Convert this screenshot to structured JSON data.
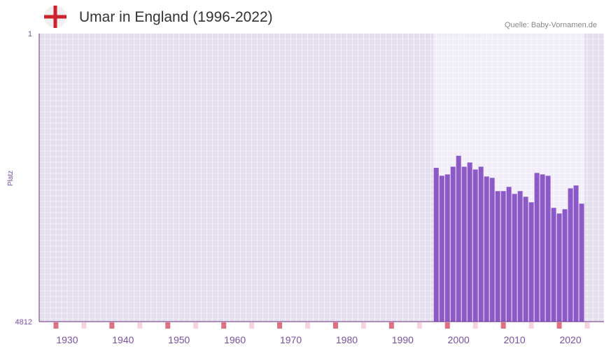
{
  "header": {
    "title": "Umar in England (1996-2022)",
    "source": "Quelle: Baby-Vornamen.de",
    "flag_icon": "england-flag-icon"
  },
  "colors": {
    "bar": "#8c59c9",
    "plot_bg": "#e3deec",
    "highlight_bg": "#f1edf8",
    "axis": "#6a2d7e",
    "grid": "#ffffff",
    "decade_marker": "#e07080",
    "half_decade_marker": "#f5d5dc",
    "flag_red": "#d0212e"
  },
  "chart_data": {
    "type": "bar",
    "title": "Umar in England (1996-2022)",
    "xlabel": "",
    "ylabel": "Platz",
    "y_inverted": true,
    "ylim": [
      1,
      4812
    ],
    "y_ticks": [
      "1",
      "4812"
    ],
    "xlim": [
      1925,
      2026
    ],
    "x_ticks": [
      "1930",
      "1940",
      "1950",
      "1960",
      "1970",
      "1980",
      "1990",
      "2000",
      "2010",
      "2020"
    ],
    "highlight_range": [
      1996,
      2022
    ],
    "x": [
      1996,
      1997,
      1998,
      1999,
      2000,
      2001,
      2002,
      2003,
      2004,
      2005,
      2006,
      2007,
      2008,
      2009,
      2010,
      2011,
      2012,
      2013,
      2014,
      2015,
      2016,
      2017,
      2018,
      2019,
      2020,
      2021,
      2022
    ],
    "values": [
      2243,
      2376,
      2353,
      2225,
      2042,
      2225,
      2154,
      2271,
      2225,
      2388,
      2411,
      2632,
      2632,
      2562,
      2679,
      2632,
      2726,
      2819,
      2329,
      2353,
      2376,
      2912,
      3006,
      2935,
      2586,
      2538,
      2842
    ]
  }
}
